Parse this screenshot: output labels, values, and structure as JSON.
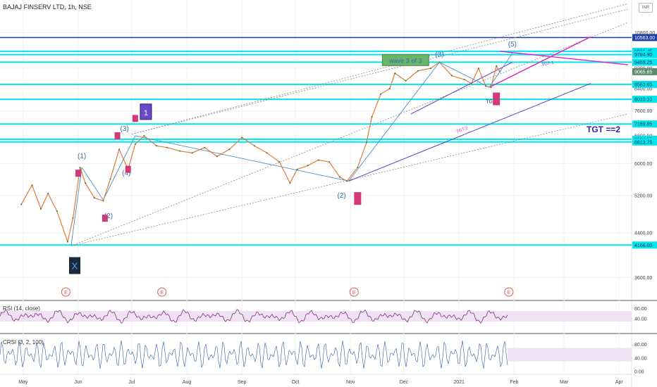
{
  "header": {
    "title": "BAJAJ FINSERV LTD, 1h, NSE",
    "currency_badge": "INR"
  },
  "chart_data": {
    "type": "line",
    "title": "BAJAJ FINSERV LTD, 1h, NSE",
    "xlabel": "",
    "ylabel": "",
    "x_ticks": [
      "May",
      "Jun",
      "Jul",
      "Aug",
      "Sep",
      "Oct",
      "Nov",
      "Dec",
      "2021",
      "Feb",
      "Mar",
      "Apr"
    ],
    "y_ticks": [
      3600.0,
      4400.0,
      5200.0,
      6000.0,
      6800.0,
      7600.0,
      8400.0,
      9200.0,
      10800.0
    ],
    "y_scale": "log",
    "ylim": [
      3250,
      12500
    ],
    "current_price": 9065.65,
    "series": [
      {
        "values": [
          [
            "2020-04-30",
            5000
          ],
          [
            "2020-05-06",
            5450
          ],
          [
            "2020-05-11",
            4900
          ],
          [
            "2020-05-15",
            5250
          ],
          [
            "2020-05-20",
            4850
          ],
          [
            "2020-05-26",
            4230
          ],
          [
            "2020-05-29",
            4700
          ],
          [
            "2020-06-02",
            5900
          ],
          [
            "2020-06-05",
            5500
          ],
          [
            "2020-06-10",
            5150
          ],
          [
            "2020-06-15",
            5080
          ],
          [
            "2020-06-19",
            5600
          ],
          [
            "2020-06-24",
            6400
          ],
          [
            "2020-06-29",
            5850
          ],
          [
            "2020-07-03",
            6550
          ],
          [
            "2020-07-08",
            6800
          ],
          [
            "2020-07-15",
            6500
          ],
          [
            "2020-07-21",
            6450
          ],
          [
            "2020-07-28",
            6350
          ],
          [
            "2020-08-04",
            6300
          ],
          [
            "2020-08-11",
            6450
          ],
          [
            "2020-08-18",
            6200
          ],
          [
            "2020-08-25",
            6400
          ],
          [
            "2020-09-01",
            6750
          ],
          [
            "2020-09-08",
            6500
          ],
          [
            "2020-09-15",
            6300
          ],
          [
            "2020-09-22",
            6050
          ],
          [
            "2020-09-28",
            5500
          ],
          [
            "2020-10-02",
            5850
          ],
          [
            "2020-10-08",
            5950
          ],
          [
            "2020-10-14",
            6100
          ],
          [
            "2020-10-20",
            6050
          ],
          [
            "2020-10-26",
            5650
          ],
          [
            "2020-10-30",
            5550
          ],
          [
            "2020-11-05",
            5900
          ],
          [
            "2020-11-10",
            6600
          ],
          [
            "2020-11-13",
            7400
          ],
          [
            "2020-11-18",
            8200
          ],
          [
            "2020-11-23",
            8400
          ],
          [
            "2020-11-26",
            9000
          ],
          [
            "2020-12-02",
            8700
          ],
          [
            "2020-12-09",
            9100
          ],
          [
            "2020-12-16",
            9200
          ],
          [
            "2020-12-21",
            9459
          ],
          [
            "2020-12-28",
            8900
          ],
          [
            "2021-01-04",
            8750
          ],
          [
            "2021-01-08",
            8600
          ],
          [
            "2021-01-12",
            9200
          ],
          [
            "2021-01-16",
            8500
          ],
          [
            "2021-01-19",
            8450
          ],
          [
            "2021-01-22",
            9300
          ],
          [
            "2021-01-24",
            9065
          ]
        ]
      }
    ],
    "price_levels": [
      {
        "label": "10563.00",
        "value": 10563.0,
        "color": "#1c3fa8"
      },
      {
        "label": "9931.45",
        "value": 9931.45,
        "color": "#00e5f0"
      },
      {
        "label": "9784.90",
        "value": 9784.9,
        "color": "#00e5f0"
      },
      {
        "label": "9459.25",
        "value": 9459.25,
        "color": "#00e5f0"
      },
      {
        "label": "8563.65",
        "value": 8563.65,
        "color": "#00e5f0"
      },
      {
        "label": "8010.10",
        "value": 8010.1,
        "color": "#00e5f0"
      },
      {
        "label": "7169.85",
        "value": 7169.85,
        "color": "#00e5f0"
      },
      {
        "label": "6694.55",
        "value": 6694.55,
        "color": "#00e5f0"
      },
      {
        "label": "6613.75",
        "value": 6613.75,
        "color": "#00e5f0"
      },
      {
        "label": "4166.00",
        "value": 4166.0,
        "color": "#00e5f0"
      }
    ],
    "wave_labels": [
      "(1)",
      "(2)",
      "(3)",
      "(4)",
      "(2)",
      "(3)",
      "(5)"
    ],
    "annotations": {
      "x_marker": "X",
      "marker_1": "1",
      "wave3_box": "wave 3 of 3",
      "tgt_main": "TGT ==2",
      "tgt1_a": "TGT-1",
      "tgt1_b": "TGT-1",
      "tgt2": "TGT-2",
      "event_marker": "E"
    }
  },
  "indicators": {
    "rsi": {
      "title": "RSI (14, close)",
      "ticks": [
        80.0,
        40.0
      ]
    },
    "crsi": {
      "title": "CRSI (3, 2, 100)",
      "ticks": [
        80.0,
        40.0,
        0.0
      ]
    }
  },
  "colors": {
    "candle": "#e07a3a",
    "level_line": "#00e5f0",
    "main_level": "#1c3fa8",
    "wave_line": "#4a90c8",
    "magenta": "#e020c0",
    "purple": "#5a3ac8",
    "rsi": "#8a2b8a",
    "crsi": "#2f5fa8"
  }
}
